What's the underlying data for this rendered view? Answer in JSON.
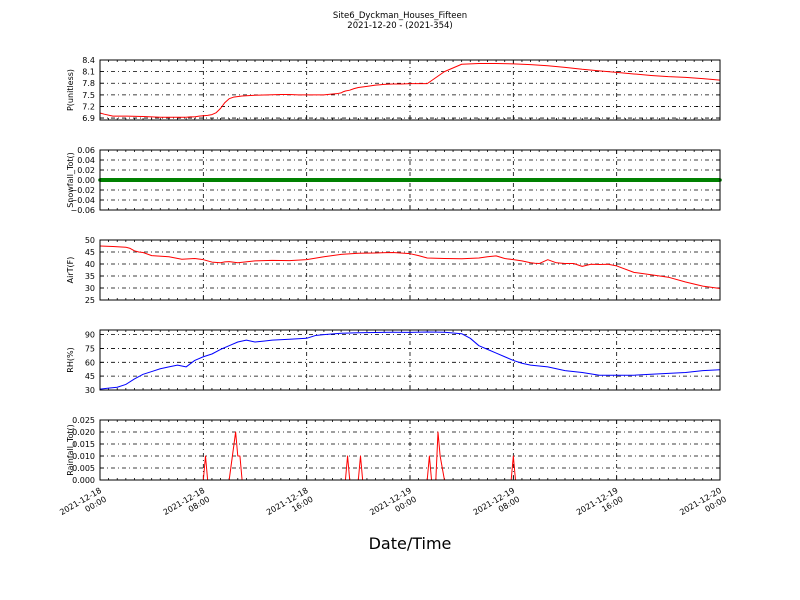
{
  "figure": {
    "title": "Site6_Dyckman_Houses_Fifteen",
    "subtitle": "2021-12-20 - (2021-354)",
    "xlabel": "Date/Time"
  },
  "chart_data": [
    {
      "type": "line",
      "ylabel": "P(unitless)",
      "color": "#ff0000",
      "ylim": [
        6.85,
        8.4
      ],
      "yticks": [
        "6.9",
        "7.2",
        "7.5",
        "7.8",
        "8.1",
        "8.4"
      ],
      "ytick_values": [
        6.9,
        7.2,
        7.5,
        7.8,
        8.1,
        8.4
      ],
      "grid": true,
      "x_hours": [
        0,
        1,
        3,
        6,
        10,
        14,
        18,
        20,
        21,
        22,
        23,
        24,
        25,
        26,
        27,
        28,
        29,
        30,
        31,
        33,
        36,
        39,
        42,
        44,
        46,
        48,
        50,
        52,
        54,
        55,
        56,
        56.5,
        57,
        58,
        59,
        60,
        62,
        64,
        66,
        68,
        70,
        72,
        76,
        80,
        84,
        88,
        92,
        96,
        100,
        104,
        108,
        112,
        116,
        120,
        124,
        128,
        132,
        136,
        140,
        144
      ],
      "values": [
        7.03,
        7.0,
        6.95,
        6.95,
        6.94,
        6.92,
        6.92,
        6.92,
        6.93,
        6.93,
        6.95,
        6.96,
        6.97,
        6.99,
        7.04,
        7.15,
        7.3,
        7.4,
        7.44,
        7.47,
        7.49,
        7.5,
        7.51,
        7.51,
        7.5,
        7.5,
        7.5,
        7.5,
        7.52,
        7.53,
        7.55,
        7.58,
        7.6,
        7.62,
        7.66,
        7.69,
        7.72,
        7.75,
        7.77,
        7.78,
        7.78,
        7.79,
        7.79,
        8.1,
        8.29,
        8.31,
        8.31,
        8.3,
        8.28,
        8.25,
        8.21,
        8.16,
        8.12,
        8.08,
        8.04,
        8.0,
        7.97,
        7.95,
        7.92,
        7.88
      ]
    },
    {
      "type": "line",
      "ylabel": "Snowfall_Tot()",
      "color": "#008000",
      "ylim": [
        -0.06,
        0.06
      ],
      "yticks": [
        "−0.06",
        "−0.04",
        "−0.02",
        "0.00",
        "0.02",
        "0.04",
        "0.06"
      ],
      "ytick_values": [
        -0.06,
        -0.04,
        -0.02,
        0.0,
        0.02,
        0.04,
        0.06
      ],
      "grid": true,
      "x_hours": [
        0,
        144
      ],
      "values": [
        0,
        0
      ]
    },
    {
      "type": "line",
      "ylabel": "AirT(F)",
      "color": "#ff0000",
      "ylim": [
        25,
        50
      ],
      "yticks": [
        "25",
        "30",
        "35",
        "40",
        "45",
        "50"
      ],
      "ytick_values": [
        25,
        30,
        35,
        40,
        45,
        50
      ],
      "grid": true,
      "x_hours": [
        0,
        3,
        6,
        7,
        8,
        9,
        10,
        12,
        16,
        19,
        22,
        24,
        26,
        28,
        29,
        30,
        32,
        36,
        40,
        44,
        48,
        52,
        56,
        60,
        64,
        68,
        72,
        74,
        76,
        80,
        84,
        88,
        90,
        92,
        94,
        96,
        98,
        100,
        101,
        102,
        104,
        106,
        108,
        110,
        112,
        114,
        116,
        118,
        120,
        124,
        128,
        132,
        136,
        140,
        144
      ],
      "values": [
        47.5,
        47.3,
        47.0,
        46.5,
        45.5,
        45.0,
        44.8,
        43.5,
        43.0,
        42.0,
        42.3,
        41.8,
        40.8,
        40.5,
        40.9,
        41.0,
        40.5,
        41.3,
        41.5,
        41.4,
        41.8,
        43.0,
        44.0,
        44.5,
        44.6,
        44.8,
        44.3,
        43.5,
        42.5,
        42.3,
        42.2,
        42.5,
        43.0,
        43.4,
        42.3,
        41.8,
        41.3,
        40.5,
        40.3,
        40.2,
        41.8,
        40.5,
        40.2,
        40.2,
        39.0,
        39.9,
        39.8,
        39.9,
        39.2,
        36.5,
        35.5,
        34.5,
        32.5,
        30.8,
        29.8
      ]
    },
    {
      "type": "line",
      "ylabel": "RH(%)",
      "color": "#0000ff",
      "ylim": [
        30,
        95
      ],
      "yticks": [
        "30",
        "45",
        "60",
        "75",
        "90"
      ],
      "ytick_values": [
        30,
        45,
        60,
        75,
        90
      ],
      "grid": true,
      "x_hours": [
        0,
        2,
        4,
        6,
        8,
        10,
        12,
        14,
        16,
        18,
        20,
        22,
        24,
        26,
        28,
        30,
        32,
        34,
        36,
        38,
        40,
        44,
        48,
        50,
        52,
        56,
        60,
        64,
        68,
        72,
        76,
        80,
        84,
        86,
        88,
        90,
        92,
        94,
        96,
        98,
        100,
        104,
        108,
        112,
        116,
        120,
        124,
        128,
        132,
        136,
        140,
        144
      ],
      "values": [
        31,
        32,
        33,
        36,
        42,
        47,
        50,
        53,
        55,
        57,
        55,
        62,
        66,
        69,
        74,
        78,
        82,
        84,
        82,
        83,
        84,
        85,
        86,
        89,
        90,
        91.5,
        92,
        92.3,
        92.5,
        92.4,
        92.8,
        92.5,
        91,
        86,
        78,
        74,
        70,
        66,
        62,
        59,
        57,
        55,
        51,
        49,
        46,
        46,
        46,
        47,
        48,
        49,
        51,
        52
      ]
    },
    {
      "type": "line",
      "ylabel": "Rainfall_Tot()",
      "color": "#ff0000",
      "ylim": [
        0,
        0.025
      ],
      "yticks": [
        "0.000",
        "0.005",
        "0.010",
        "0.015",
        "0.020",
        "0.025"
      ],
      "ytick_values": [
        0.0,
        0.005,
        0.01,
        0.015,
        0.02,
        0.025
      ],
      "grid": true,
      "x_hours": [
        0,
        24,
        24.5,
        25,
        30,
        31.5,
        32,
        32.5,
        33,
        33.5,
        57,
        57.5,
        58,
        60,
        60.5,
        61,
        76,
        76.5,
        77,
        78,
        78.5,
        79,
        80,
        95.5,
        96,
        96.5,
        144
      ],
      "values": [
        0,
        0,
        0.01,
        0,
        0,
        0.02,
        0.01,
        0.01,
        0,
        0,
        0,
        0.01,
        0,
        0,
        0.01,
        0,
        0,
        0.01,
        0,
        0,
        0.02,
        0.01,
        0,
        0,
        0.01,
        0,
        0
      ]
    }
  ],
  "x_axis": {
    "xlim_hours": [
      0,
      144
    ],
    "tick_hours": [
      0,
      24,
      48,
      72,
      96,
      120,
      144
    ],
    "tick_labels": [
      [
        "2021-12-18",
        "00:00"
      ],
      [
        "2021-12-18",
        "08:00"
      ],
      [
        "2021-12-18",
        "16:00"
      ],
      [
        "2021-12-19",
        "00:00"
      ],
      [
        "2021-12-19",
        "08:00"
      ],
      [
        "2021-12-19",
        "16:00"
      ],
      [
        "2021-12-20",
        "00:00"
      ]
    ]
  }
}
